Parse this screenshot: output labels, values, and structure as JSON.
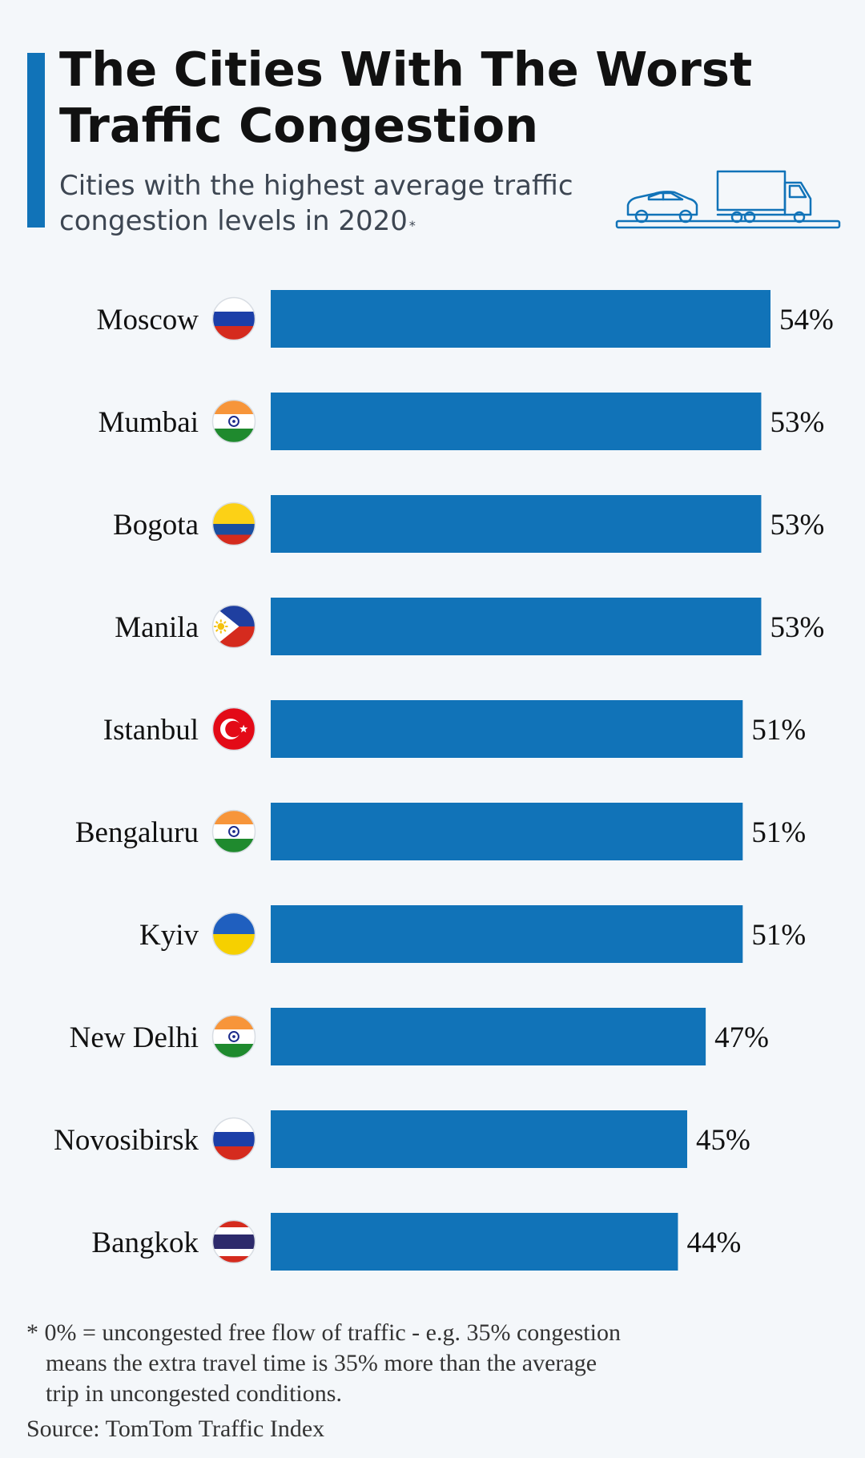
{
  "header": {
    "title": "The Cities With The Worst Traffic Congestion",
    "subtitle": "Cities with the highest average traffic congestion levels in 2020",
    "subtitle_mark": "*"
  },
  "chart_data": {
    "type": "bar",
    "orientation": "horizontal",
    "title": "The Cities With The Worst Traffic Congestion",
    "subtitle": "Cities with the highest average traffic congestion levels in 2020",
    "categories": [
      "Moscow",
      "Mumbai",
      "Bogota",
      "Manila",
      "Istanbul",
      "Bengaluru",
      "Kyiv",
      "New Delhi",
      "Novosibirsk",
      "Bangkok"
    ],
    "values": [
      54,
      53,
      53,
      53,
      51,
      51,
      51,
      47,
      45,
      44
    ],
    "value_labels": [
      "54%",
      "53%",
      "53%",
      "53%",
      "51%",
      "51%",
      "51%",
      "47%",
      "45%",
      "44%"
    ],
    "flags": [
      "russia",
      "india",
      "colombia",
      "philippines",
      "turkey",
      "india",
      "ukraine",
      "india",
      "russia",
      "thailand"
    ],
    "unit": "%",
    "xlim": [
      0,
      54
    ],
    "grid": false,
    "bar_color": "#1173b8"
  },
  "footer": {
    "footnote_line1": "* 0% = uncongested free flow of traffic - e.g. 35% congestion",
    "footnote_line2": "means the extra travel time is 35% more than the average",
    "footnote_line3": "trip in uncongested conditions.",
    "source": "Source: TomTom Traffic Index"
  },
  "colors": {
    "accent": "#1173b8",
    "background": "#f4f7fa",
    "icon_stroke": "#1173b8"
  },
  "icons": {
    "vehicles": "car-and-truck-icon"
  }
}
